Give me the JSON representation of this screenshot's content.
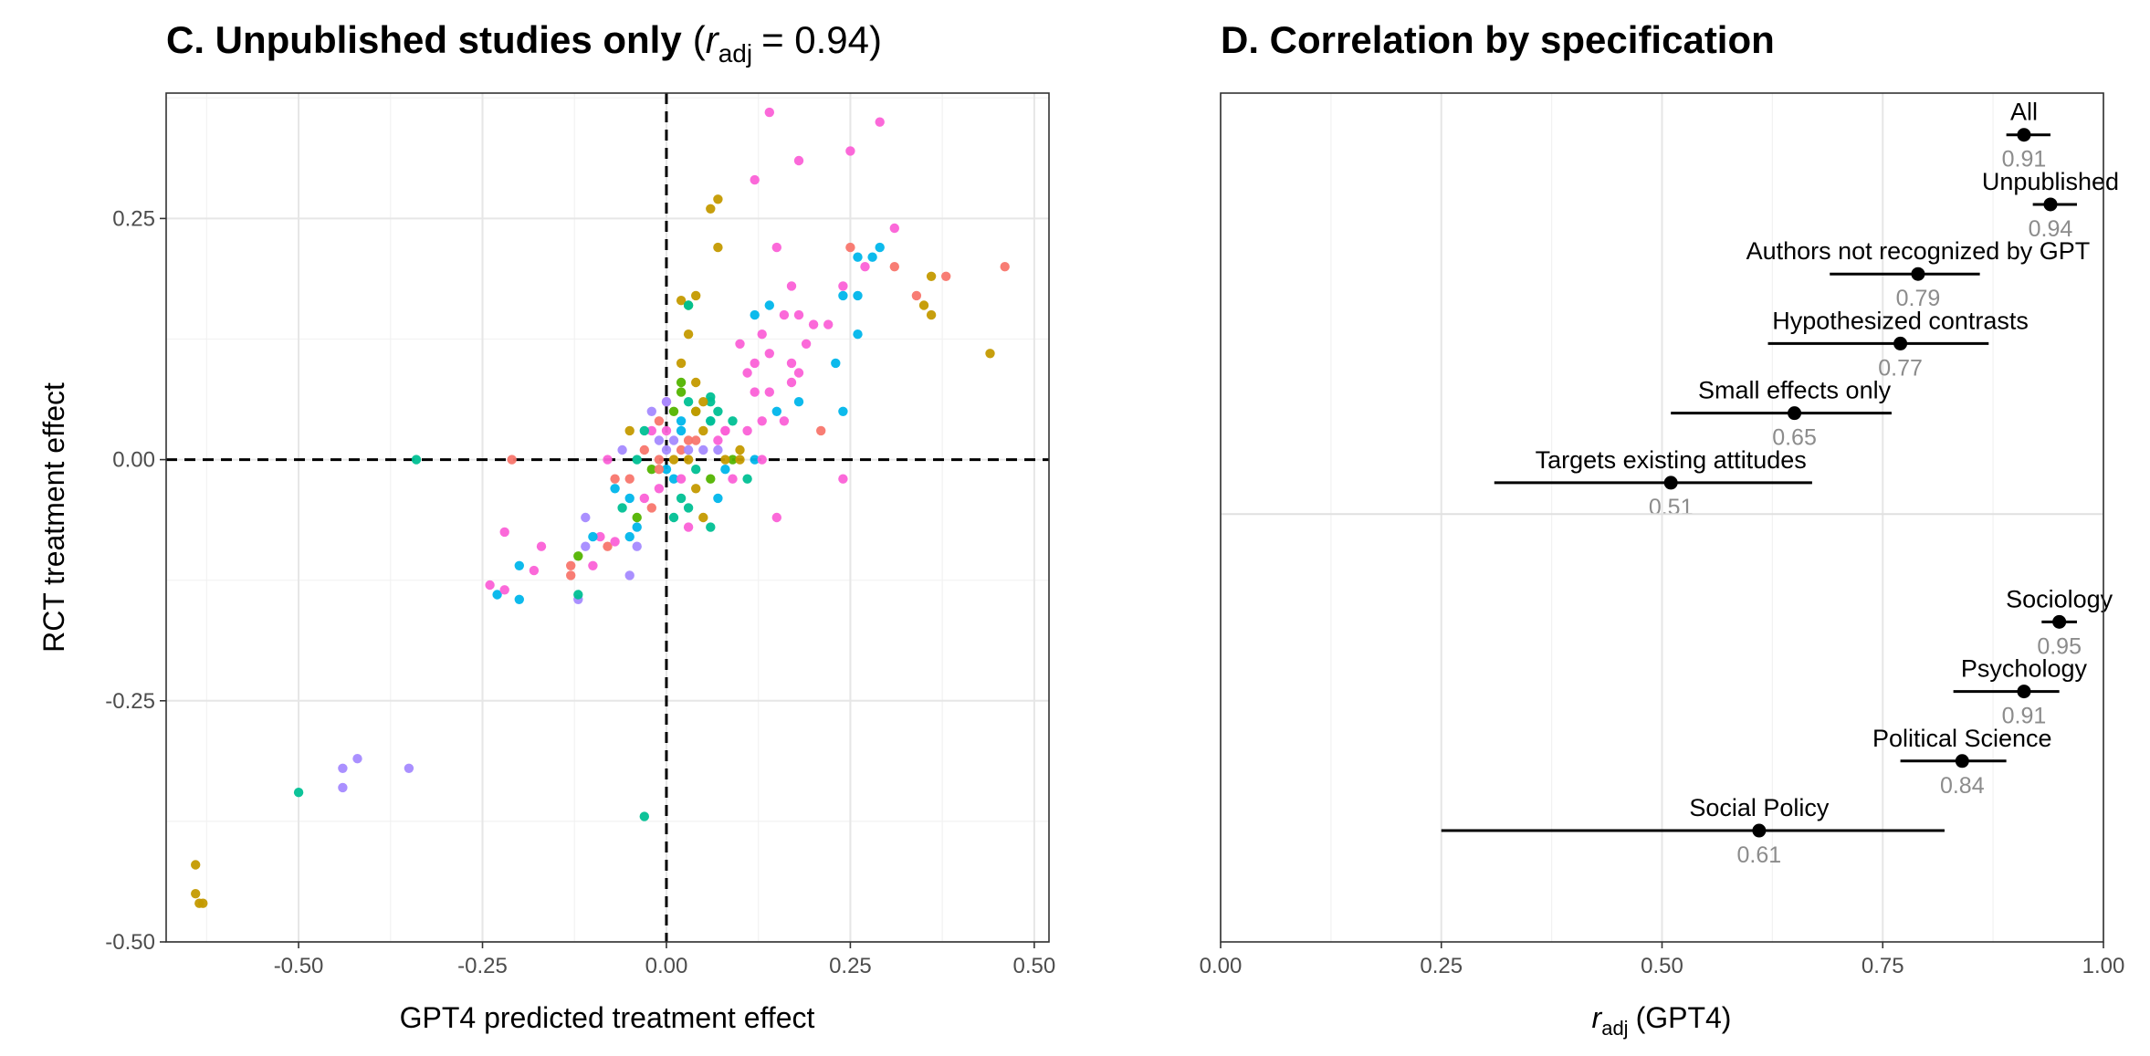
{
  "charts": [
    {
      "panel": "C",
      "title_bold": "C. Unpublished studies only",
      "title_stat_symbol": "r",
      "title_stat_subscript": "adj",
      "title_stat_value": "= 0.94",
      "chart_data": {
        "type": "scatter",
        "title": "C. Unpublished studies only (r_adj = 0.94)",
        "xlabel": "GPT4 predicted treatment effect",
        "ylabel": "RCT treatment effect",
        "xlim": [
          -0.68,
          0.52
        ],
        "ylim": [
          -0.5,
          0.38
        ],
        "xticks": [
          -0.5,
          -0.25,
          0,
          0.25,
          0.5
        ],
        "xtick_labels": [
          "-0.50",
          "-0.25",
          "0.00",
          "0.25",
          "0.50"
        ],
        "yticks": [
          -0.5,
          -0.25,
          0,
          0.25
        ],
        "ytick_labels": [
          "-0.50",
          "-0.25",
          "0.00",
          "0.25"
        ],
        "grid": true,
        "reference_lines": {
          "x": 0,
          "y": 0,
          "style": "dashed"
        },
        "legend": "none",
        "palette": [
          "#f8766d",
          "#c49a00",
          "#53b400",
          "#00c094",
          "#00b6eb",
          "#a58aff",
          "#fb61d7"
        ],
        "points": [
          [
            0.02,
            0.01,
            0
          ],
          [
            0.01,
            -0.02,
            4
          ],
          [
            -0.01,
            0.02,
            5
          ],
          [
            0.03,
            0.0,
            1
          ],
          [
            -0.02,
            -0.01,
            2
          ],
          [
            0.0,
            0.03,
            6
          ],
          [
            0.04,
            -0.01,
            3
          ],
          [
            -0.03,
            0.01,
            0
          ],
          [
            0.02,
            0.04,
            4
          ],
          [
            0.05,
            0.01,
            5
          ],
          [
            -0.01,
            -0.03,
            6
          ],
          [
            0.01,
            0.0,
            1
          ],
          [
            0.06,
            -0.02,
            2
          ],
          [
            -0.04,
            0.0,
            3
          ],
          [
            0.03,
            0.02,
            0
          ],
          [
            0.0,
            -0.01,
            4
          ],
          [
            0.07,
            0.01,
            5
          ],
          [
            -0.02,
            0.03,
            6
          ],
          [
            0.04,
            -0.03,
            1
          ],
          [
            0.02,
            -0.04,
            3
          ],
          [
            0.01,
            0.05,
            2
          ],
          [
            -0.05,
            -0.02,
            0
          ],
          [
            0.08,
            -0.01,
            4
          ],
          [
            0.0,
            0.01,
            5
          ],
          [
            -0.03,
            -0.04,
            6
          ],
          [
            0.05,
            0.03,
            1
          ],
          [
            0.09,
            0.0,
            2
          ],
          [
            0.03,
            -0.05,
            3
          ],
          [
            -0.01,
            0.0,
            0
          ],
          [
            0.02,
            -0.02,
            6
          ],
          [
            0.06,
            0.04,
            4
          ],
          [
            -0.06,
            0.01,
            5
          ],
          [
            0.01,
            -0.06,
            3
          ],
          [
            0.04,
            0.02,
            0
          ],
          [
            0.1,
            0.01,
            1
          ],
          [
            -0.04,
            -0.06,
            2
          ],
          [
            0.07,
            -0.04,
            4
          ],
          [
            0.0,
            0.06,
            6
          ],
          [
            0.03,
            0.01,
            5
          ],
          [
            -0.02,
            -0.05,
            0
          ],
          [
            0.11,
            -0.02,
            3
          ],
          [
            0.05,
            -0.06,
            1
          ],
          [
            -0.07,
            -0.03,
            4
          ],
          [
            0.02,
            0.07,
            2
          ],
          [
            0.08,
            0.03,
            6
          ],
          [
            0.01,
            0.02,
            5
          ],
          [
            -0.01,
            0.04,
            0
          ],
          [
            0.06,
            -0.07,
            3
          ],
          [
            0.12,
            0.0,
            4
          ],
          [
            -0.05,
            0.03,
            1
          ],
          [
            0.04,
            0.05,
            2
          ],
          [
            0.03,
            -0.07,
            6
          ],
          [
            -0.08,
            -0.09,
            0
          ],
          [
            -0.09,
            -0.08,
            6
          ],
          [
            -0.07,
            -0.085,
            6
          ],
          [
            -0.1,
            -0.08,
            4
          ],
          [
            -0.11,
            -0.09,
            5
          ],
          [
            -0.12,
            -0.1,
            2
          ],
          [
            -0.11,
            -0.06,
            5
          ],
          [
            -0.13,
            -0.11,
            0
          ],
          [
            -0.13,
            -0.12,
            0
          ],
          [
            -0.12,
            -0.145,
            5
          ],
          [
            -0.12,
            -0.14,
            3
          ],
          [
            -0.1,
            -0.11,
            6
          ],
          [
            -0.05,
            -0.08,
            4
          ],
          [
            -0.04,
            -0.07,
            4
          ],
          [
            -0.05,
            -0.04,
            4
          ],
          [
            -0.04,
            -0.09,
            5
          ],
          [
            -0.06,
            -0.05,
            3
          ],
          [
            -0.07,
            -0.02,
            0
          ],
          [
            -0.08,
            0.0,
            6
          ],
          [
            -0.02,
            0.05,
            5
          ],
          [
            0.0,
            0.06,
            5
          ],
          [
            0.02,
            0.03,
            4
          ],
          [
            -0.03,
            0.03,
            3
          ],
          [
            -0.05,
            -0.12,
            5
          ],
          [
            -0.01,
            -0.01,
            0
          ],
          [
            -0.21,
            0.0,
            0
          ],
          [
            -0.34,
            0.0,
            3
          ],
          [
            -0.22,
            -0.075,
            6
          ],
          [
            -0.18,
            -0.115,
            6
          ],
          [
            -0.2,
            -0.145,
            4
          ],
          [
            -0.2,
            -0.11,
            4
          ],
          [
            -0.23,
            -0.14,
            4
          ],
          [
            -0.22,
            -0.135,
            6
          ],
          [
            -0.24,
            -0.13,
            6
          ],
          [
            -0.17,
            -0.09,
            6
          ],
          [
            -0.44,
            -0.32,
            5
          ],
          [
            -0.42,
            -0.31,
            5
          ],
          [
            -0.44,
            -0.34,
            5
          ],
          [
            -0.35,
            -0.32,
            5
          ],
          [
            -0.5,
            -0.345,
            3
          ],
          [
            -0.03,
            -0.37,
            3
          ],
          [
            -0.64,
            -0.42,
            1
          ],
          [
            -0.64,
            -0.45,
            1
          ],
          [
            -0.635,
            -0.46,
            1
          ],
          [
            -0.63,
            -0.46,
            1
          ],
          [
            0.02,
            0.165,
            1
          ],
          [
            0.03,
            0.16,
            2
          ],
          [
            0.04,
            0.17,
            1
          ],
          [
            0.03,
            0.13,
            1
          ],
          [
            0.02,
            0.1,
            1
          ],
          [
            0.04,
            0.08,
            1
          ],
          [
            0.02,
            0.08,
            2
          ],
          [
            0.03,
            0.06,
            3
          ],
          [
            0.06,
            0.065,
            3
          ],
          [
            0.06,
            0.06,
            3
          ],
          [
            0.07,
            0.05,
            3
          ],
          [
            0.06,
            0.04,
            3
          ],
          [
            0.08,
            0.03,
            6
          ],
          [
            0.09,
            0.04,
            3
          ],
          [
            0.07,
            0.02,
            6
          ],
          [
            0.05,
            0.06,
            1
          ],
          [
            0.07,
            0.27,
            1
          ],
          [
            0.06,
            0.26,
            1
          ],
          [
            0.07,
            0.22,
            1
          ],
          [
            0.03,
            0.16,
            3
          ],
          [
            0.04,
            0.05,
            1
          ],
          [
            0.08,
            0.0,
            1
          ],
          [
            0.09,
            -0.02,
            6
          ],
          [
            0.1,
            0.0,
            1
          ],
          [
            0.11,
            0.03,
            6
          ],
          [
            0.12,
            0.07,
            6
          ],
          [
            0.13,
            0.0,
            6
          ],
          [
            0.13,
            0.04,
            6
          ],
          [
            0.14,
            0.07,
            6
          ],
          [
            0.15,
            -0.06,
            6
          ],
          [
            0.16,
            0.04,
            6
          ],
          [
            0.17,
            0.08,
            6
          ],
          [
            0.11,
            0.09,
            6
          ],
          [
            0.12,
            0.1,
            6
          ],
          [
            0.14,
            0.11,
            6
          ],
          [
            0.1,
            0.12,
            6
          ],
          [
            0.13,
            0.13,
            6
          ],
          [
            0.16,
            0.15,
            6
          ],
          [
            0.18,
            0.15,
            6
          ],
          [
            0.2,
            0.14,
            6
          ],
          [
            0.22,
            0.14,
            6
          ],
          [
            0.19,
            0.12,
            6
          ],
          [
            0.17,
            0.1,
            6
          ],
          [
            0.18,
            0.06,
            4
          ],
          [
            0.15,
            0.05,
            4
          ],
          [
            0.21,
            0.03,
            0
          ],
          [
            0.24,
            -0.02,
            6
          ],
          [
            0.24,
            0.05,
            4
          ],
          [
            0.23,
            0.1,
            4
          ],
          [
            0.18,
            0.09,
            6
          ],
          [
            0.12,
            0.15,
            4
          ],
          [
            0.14,
            0.16,
            4
          ],
          [
            0.15,
            0.22,
            6
          ],
          [
            0.17,
            0.18,
            6
          ],
          [
            0.12,
            0.29,
            6
          ],
          [
            0.18,
            0.31,
            6
          ],
          [
            0.14,
            0.36,
            6
          ],
          [
            0.25,
            0.32,
            6
          ],
          [
            0.29,
            0.35,
            6
          ],
          [
            0.31,
            0.24,
            6
          ],
          [
            0.24,
            0.17,
            4
          ],
          [
            0.25,
            0.22,
            0
          ],
          [
            0.26,
            0.21,
            4
          ],
          [
            0.27,
            0.2,
            6
          ],
          [
            0.28,
            0.21,
            4
          ],
          [
            0.29,
            0.22,
            4
          ],
          [
            0.31,
            0.2,
            0
          ],
          [
            0.24,
            0.18,
            6
          ],
          [
            0.26,
            0.13,
            4
          ],
          [
            0.26,
            0.17,
            4
          ],
          [
            0.34,
            0.17,
            0
          ],
          [
            0.35,
            0.16,
            1
          ],
          [
            0.36,
            0.19,
            1
          ],
          [
            0.36,
            0.15,
            1
          ],
          [
            0.38,
            0.19,
            0
          ],
          [
            0.44,
            0.11,
            1
          ],
          [
            0.46,
            0.2,
            0
          ]
        ]
      }
    },
    {
      "panel": "D",
      "title": "D. Correlation by specification",
      "chart_data": {
        "type": "forest",
        "title": "D. Correlation by specification",
        "xlabel_symbol": "r",
        "xlabel_subscript": "adj",
        "xlabel_suffix": "(GPT4)",
        "xlim": [
          0,
          1
        ],
        "xticks": [
          0,
          0.25,
          0.5,
          0.75,
          1
        ],
        "xtick_labels": [
          "0.00",
          "0.25",
          "0.50",
          "0.75",
          "1.00"
        ],
        "grid": true,
        "legend": "none",
        "groups": [
          {
            "rows": [
              {
                "label": "All",
                "estimate": 0.91,
                "ci": [
                  0.89,
                  0.94
                ],
                "value_label": "0.91"
              },
              {
                "label": "Unpublished",
                "estimate": 0.94,
                "ci": [
                  0.92,
                  0.97
                ],
                "value_label": "0.94"
              },
              {
                "label": "Authors not recognized by GPT",
                "estimate": 0.79,
                "ci": [
                  0.69,
                  0.86
                ],
                "value_label": "0.79"
              },
              {
                "label": "Hypothesized contrasts",
                "estimate": 0.77,
                "ci": [
                  0.62,
                  0.87
                ],
                "value_label": "0.77"
              },
              {
                "label": "Small effects only",
                "estimate": 0.65,
                "ci": [
                  0.51,
                  0.76
                ],
                "value_label": "0.65"
              },
              {
                "label": "Targets existing attitudes",
                "estimate": 0.51,
                "ci": [
                  0.31,
                  0.67
                ],
                "value_label": "0.51"
              }
            ]
          },
          {
            "rows": [
              {
                "label": "Sociology",
                "estimate": 0.95,
                "ci": [
                  0.93,
                  0.97
                ],
                "value_label": "0.95"
              },
              {
                "label": "Psychology",
                "estimate": 0.91,
                "ci": [
                  0.83,
                  0.95
                ],
                "value_label": "0.91"
              },
              {
                "label": "Political Science",
                "estimate": 0.84,
                "ci": [
                  0.77,
                  0.89
                ],
                "value_label": "0.84"
              },
              {
                "label": "Social Policy",
                "estimate": 0.61,
                "ci": [
                  0.25,
                  0.82
                ],
                "value_label": "0.61"
              }
            ]
          }
        ]
      }
    }
  ]
}
